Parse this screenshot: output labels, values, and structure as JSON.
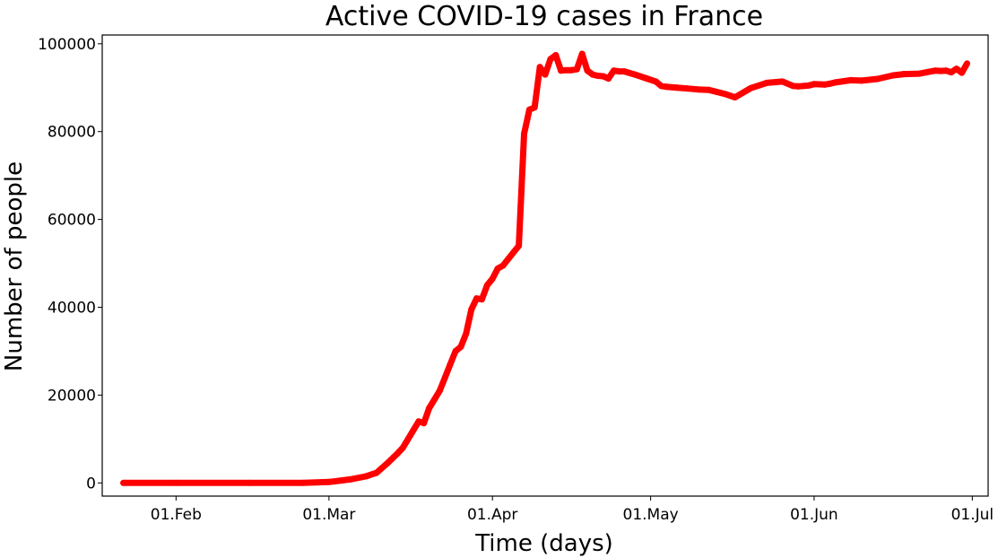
{
  "chart_data": {
    "type": "line",
    "title": "Active COVID-19 cases in France",
    "xlabel": "Time (days)",
    "ylabel": "Number of people",
    "ylim": [
      -3000,
      102000
    ],
    "xlim": [
      "2020-01-18",
      "2020-07-04"
    ],
    "grid": false,
    "legend": "none",
    "x_ticks": [
      {
        "date": "2020-02-01",
        "label": "01.Feb"
      },
      {
        "date": "2020-03-01",
        "label": "01.Mar"
      },
      {
        "date": "2020-04-01",
        "label": "01.Apr"
      },
      {
        "date": "2020-05-01",
        "label": "01.May"
      },
      {
        "date": "2020-06-01",
        "label": "01.Jun"
      },
      {
        "date": "2020-07-01",
        "label": "01.Jul"
      }
    ],
    "y_ticks": [
      {
        "value": 0,
        "label": "0"
      },
      {
        "value": 20000,
        "label": "20000"
      },
      {
        "value": 40000,
        "label": "40000"
      },
      {
        "value": 60000,
        "label": "60000"
      },
      {
        "value": 80000,
        "label": "80000"
      },
      {
        "value": 100000,
        "label": "100000"
      }
    ],
    "series": [
      {
        "color": "#ff0000",
        "x": [
          "2020-01-22",
          "2020-02-01",
          "2020-02-15",
          "2020-02-25",
          "2020-03-01",
          "2020-03-05",
          "2020-03-08",
          "2020-03-10",
          "2020-03-12",
          "2020-03-14",
          "2020-03-15",
          "2020-03-16",
          "2020-03-17",
          "2020-03-18",
          "2020-03-19",
          "2020-03-20",
          "2020-03-21",
          "2020-03-22",
          "2020-03-23",
          "2020-03-24",
          "2020-03-25",
          "2020-03-26",
          "2020-03-27",
          "2020-03-28",
          "2020-03-29",
          "2020-03-30",
          "2020-03-31",
          "2020-04-01",
          "2020-04-02",
          "2020-04-03",
          "2020-04-04",
          "2020-04-05",
          "2020-04-06",
          "2020-04-07",
          "2020-04-08",
          "2020-04-09",
          "2020-04-10",
          "2020-04-11",
          "2020-04-12",
          "2020-04-13",
          "2020-04-14",
          "2020-04-15",
          "2020-04-16",
          "2020-04-17",
          "2020-04-18",
          "2020-04-19",
          "2020-04-20",
          "2020-04-21",
          "2020-04-22",
          "2020-04-23",
          "2020-04-24",
          "2020-04-25",
          "2020-04-26",
          "2020-04-28",
          "2020-04-30",
          "2020-05-02",
          "2020-05-03",
          "2020-05-04",
          "2020-05-06",
          "2020-05-08",
          "2020-05-10",
          "2020-05-12",
          "2020-05-15",
          "2020-05-17",
          "2020-05-20",
          "2020-05-23",
          "2020-05-26",
          "2020-05-28",
          "2020-05-29",
          "2020-05-30",
          "2020-05-31",
          "2020-06-01",
          "2020-06-03",
          "2020-06-04",
          "2020-06-05",
          "2020-06-08",
          "2020-06-10",
          "2020-06-13",
          "2020-06-16",
          "2020-06-18",
          "2020-06-21",
          "2020-06-24",
          "2020-06-25",
          "2020-06-26",
          "2020-06-27",
          "2020-06-28",
          "2020-06-29",
          "2020-06-30"
        ],
        "y": [
          0,
          0,
          0,
          0,
          200,
          800,
          1500,
          2300,
          4400,
          6700,
          8000,
          10000,
          12000,
          14000,
          13600,
          17000,
          19000,
          21000,
          24000,
          27000,
          30000,
          31000,
          34000,
          39500,
          42000,
          41800,
          45000,
          46500,
          48800,
          49500,
          51000,
          52500,
          54000,
          79500,
          85000,
          85500,
          94700,
          93000,
          96500,
          97400,
          93900,
          94000,
          94000,
          94200,
          97700,
          93900,
          93000,
          92700,
          92600,
          92100,
          93900,
          93700,
          93700,
          93000,
          92200,
          91400,
          90400,
          90200,
          90000,
          89800,
          89600,
          89500,
          88600,
          87800,
          89900,
          91100,
          91400,
          90400,
          90300,
          90400,
          90500,
          90800,
          90700,
          90900,
          91200,
          91700,
          91600,
          92000,
          92800,
          93100,
          93200,
          93900,
          93800,
          93900,
          93500,
          94300,
          93400,
          95500
        ]
      }
    ]
  }
}
